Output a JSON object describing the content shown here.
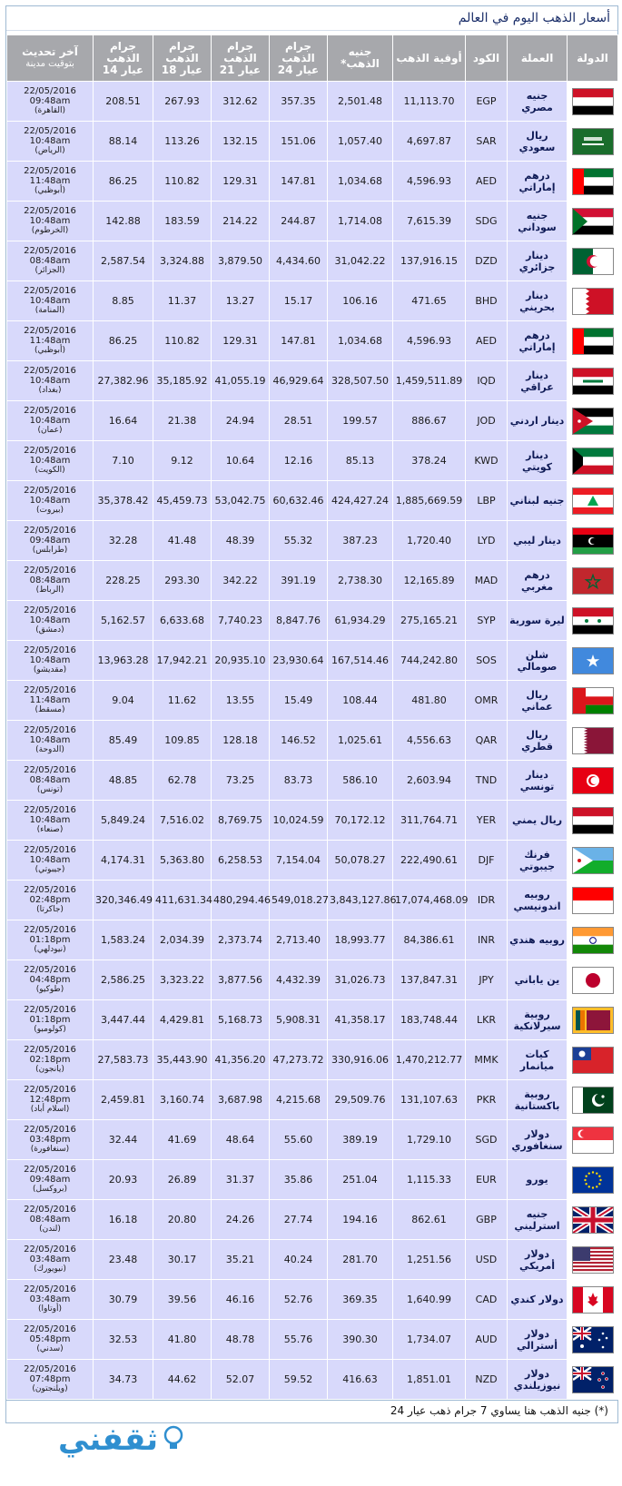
{
  "title": "أسعار الذهب اليوم في العالم",
  "headers": {
    "country": "الدولة",
    "currency": "العملة",
    "code": "الكود",
    "ounce": "أوقية الذهب",
    "pound": "جنيه الذهب*",
    "g24": "جرام الذهب عيار 24",
    "g21": "جرام الذهب عيار 21",
    "g18": "جرام الذهب عيار 18",
    "g14": "جرام الذهب عيار 14",
    "updated": "آخر تحديث",
    "updated_sub": "بتوقيت مدينة"
  },
  "flag_colors": {
    "egypt": [
      "#ce1126",
      "#ffffff",
      "#000000"
    ],
    "saudi": [
      "#1a6d2c"
    ],
    "uae": [
      "#00732f",
      "#ffffff",
      "#000000",
      "#ff0000"
    ]
  },
  "rows": [
    {
      "flag": "egypt-flag",
      "currency": "جنيه مصري",
      "code": "EGP",
      "ounce": "11,113.70",
      "pound": "2,501.48",
      "g24": "357.35",
      "g21": "312.62",
      "g18": "267.93",
      "g14": "208.51",
      "date": "22/05/2016",
      "time": "09:48am",
      "city": "(القاهرة)"
    },
    {
      "flag": "saudi-flag",
      "currency": "ريال سعودي",
      "code": "SAR",
      "ounce": "4,697.87",
      "pound": "1,057.40",
      "g24": "151.06",
      "g21": "132.15",
      "g18": "113.26",
      "g14": "88.14",
      "date": "22/05/2016",
      "time": "10:48am",
      "city": "(الرياض)"
    },
    {
      "flag": "uae-flag",
      "currency": "درهم إماراتي",
      "code": "AED",
      "ounce": "4,596.93",
      "pound": "1,034.68",
      "g24": "147.81",
      "g21": "129.31",
      "g18": "110.82",
      "g14": "86.25",
      "date": "22/05/2016",
      "time": "11:48am",
      "city": "(أبوظبي)"
    },
    {
      "flag": "sudan-flag",
      "currency": "جنيه سوداني",
      "code": "SDG",
      "ounce": "7,615.39",
      "pound": "1,714.08",
      "g24": "244.87",
      "g21": "214.22",
      "g18": "183.59",
      "g14": "142.88",
      "date": "22/05/2016",
      "time": "10:48am",
      "city": "(الخرطوم)"
    },
    {
      "flag": "algeria-flag",
      "currency": "دينار جزائري",
      "code": "DZD",
      "ounce": "137,916.15",
      "pound": "31,042.22",
      "g24": "4,434.60",
      "g21": "3,879.50",
      "g18": "3,324.88",
      "g14": "2,587.54",
      "date": "22/05/2016",
      "time": "08:48am",
      "city": "(الجزائر)"
    },
    {
      "flag": "bahrain-flag",
      "currency": "دينار بحريني",
      "code": "BHD",
      "ounce": "471.65",
      "pound": "106.16",
      "g24": "15.17",
      "g21": "13.27",
      "g18": "11.37",
      "g14": "8.85",
      "date": "22/05/2016",
      "time": "10:48am",
      "city": "(المنامة)"
    },
    {
      "flag": "uae-flag",
      "currency": "درهم إماراتي",
      "code": "AED",
      "ounce": "4,596.93",
      "pound": "1,034.68",
      "g24": "147.81",
      "g21": "129.31",
      "g18": "110.82",
      "g14": "86.25",
      "date": "22/05/2016",
      "time": "11:48am",
      "city": "(أبوظبي)"
    },
    {
      "flag": "iraq-flag",
      "currency": "دينار عراقي",
      "code": "IQD",
      "ounce": "1,459,511.89",
      "pound": "328,507.50",
      "g24": "46,929.64",
      "g21": "41,055.19",
      "g18": "35,185.92",
      "g14": "27,382.96",
      "date": "22/05/2016",
      "time": "10:48am",
      "city": "(بغداد)"
    },
    {
      "flag": "jordan-flag",
      "currency": "دينار اردني",
      "code": "JOD",
      "ounce": "886.67",
      "pound": "199.57",
      "g24": "28.51",
      "g21": "24.94",
      "g18": "21.38",
      "g14": "16.64",
      "date": "22/05/2016",
      "time": "10:48am",
      "city": "(عمان)"
    },
    {
      "flag": "kuwait-flag",
      "currency": "دينار كويتي",
      "code": "KWD",
      "ounce": "378.24",
      "pound": "85.13",
      "g24": "12.16",
      "g21": "10.64",
      "g18": "9.12",
      "g14": "7.10",
      "date": "22/05/2016",
      "time": "10:48am",
      "city": "(الكويت)"
    },
    {
      "flag": "lebanon-flag",
      "currency": "جنيه لبناني",
      "code": "LBP",
      "ounce": "1,885,669.59",
      "pound": "424,427.24",
      "g24": "60,632.46",
      "g21": "53,042.75",
      "g18": "45,459.73",
      "g14": "35,378.42",
      "date": "22/05/2016",
      "time": "10:48am",
      "city": "(بيروت)"
    },
    {
      "flag": "libya-flag",
      "currency": "دينار ليبي",
      "code": "LYD",
      "ounce": "1,720.40",
      "pound": "387.23",
      "g24": "55.32",
      "g21": "48.39",
      "g18": "41.48",
      "g14": "32.28",
      "date": "22/05/2016",
      "time": "09:48am",
      "city": "(طرابلس)"
    },
    {
      "flag": "morocco-flag",
      "currency": "درهم مغربي",
      "code": "MAD",
      "ounce": "12,165.89",
      "pound": "2,738.30",
      "g24": "391.19",
      "g21": "342.22",
      "g18": "293.30",
      "g14": "228.25",
      "date": "22/05/2016",
      "time": "08:48am",
      "city": "(الرباط)"
    },
    {
      "flag": "syria-flag",
      "currency": "ليرة سورية",
      "code": "SYP",
      "ounce": "275,165.21",
      "pound": "61,934.29",
      "g24": "8,847.76",
      "g21": "7,740.23",
      "g18": "6,633.68",
      "g14": "5,162.57",
      "date": "22/05/2016",
      "time": "10:48am",
      "city": "(دمشق)"
    },
    {
      "flag": "somalia-flag",
      "currency": "شلن صومالي",
      "code": "SOS",
      "ounce": "744,242.80",
      "pound": "167,514.46",
      "g24": "23,930.64",
      "g21": "20,935.10",
      "g18": "17,942.21",
      "g14": "13,963.28",
      "date": "22/05/2016",
      "time": "10:48am",
      "city": "(مقديشو)"
    },
    {
      "flag": "oman-flag",
      "currency": "ريال عماني",
      "code": "OMR",
      "ounce": "481.80",
      "pound": "108.44",
      "g24": "15.49",
      "g21": "13.55",
      "g18": "11.62",
      "g14": "9.04",
      "date": "22/05/2016",
      "time": "11:48am",
      "city": "(مسقط)"
    },
    {
      "flag": "qatar-flag",
      "currency": "ريال قطري",
      "code": "QAR",
      "ounce": "4,556.63",
      "pound": "1,025.61",
      "g24": "146.52",
      "g21": "128.18",
      "g18": "109.85",
      "g14": "85.49",
      "date": "22/05/2016",
      "time": "10:48am",
      "city": "(الدوحة)"
    },
    {
      "flag": "tunisia-flag",
      "currency": "دينار تونسي",
      "code": "TND",
      "ounce": "2,603.94",
      "pound": "586.10",
      "g24": "83.73",
      "g21": "73.25",
      "g18": "62.78",
      "g14": "48.85",
      "date": "22/05/2016",
      "time": "08:48am",
      "city": "(تونس)"
    },
    {
      "flag": "yemen-flag",
      "currency": "ريال يمني",
      "code": "YER",
      "ounce": "311,764.71",
      "pound": "70,172.12",
      "g24": "10,024.59",
      "g21": "8,769.75",
      "g18": "7,516.02",
      "g14": "5,849.24",
      "date": "22/05/2016",
      "time": "10:48am",
      "city": "(صنعاء)"
    },
    {
      "flag": "djibouti-flag",
      "currency": "فرنك جيبوتي",
      "code": "DJF",
      "ounce": "222,490.61",
      "pound": "50,078.27",
      "g24": "7,154.04",
      "g21": "6,258.53",
      "g18": "5,363.80",
      "g14": "4,174.31",
      "date": "22/05/2016",
      "time": "10:48am",
      "city": "(جيبوتي)"
    },
    {
      "flag": "indonesia-flag",
      "currency": "روبيه اندونيسي",
      "code": "IDR",
      "ounce": "17,074,468.09",
      "pound": "3,843,127.86",
      "g24": "549,018.27",
      "g21": "480,294.46",
      "g18": "411,631.34",
      "g14": "320,346.49",
      "date": "22/05/2016",
      "time": "02:48pm",
      "city": "(جاكرتا)"
    },
    {
      "flag": "india-flag",
      "currency": "روبيه هندي",
      "code": "INR",
      "ounce": "84,386.61",
      "pound": "18,993.77",
      "g24": "2,713.40",
      "g21": "2,373.74",
      "g18": "2,034.39",
      "g14": "1,583.24",
      "date": "22/05/2016",
      "time": "01:18pm",
      "city": "(نيودلهي)"
    },
    {
      "flag": "japan-flag",
      "currency": "ين ياباني",
      "code": "JPY",
      "ounce": "137,847.31",
      "pound": "31,026.73",
      "g24": "4,432.39",
      "g21": "3,877.56",
      "g18": "3,323.22",
      "g14": "2,586.25",
      "date": "22/05/2016",
      "time": "04:48pm",
      "city": "(طوكيو)"
    },
    {
      "flag": "srilanka-flag",
      "currency": "روبية سيرلانكية",
      "code": "LKR",
      "ounce": "183,748.44",
      "pound": "41,358.17",
      "g24": "5,908.31",
      "g21": "5,168.73",
      "g18": "4,429.81",
      "g14": "3,447.44",
      "date": "22/05/2016",
      "time": "01:18pm",
      "city": "(كولومبو)"
    },
    {
      "flag": "myanmar-flag",
      "currency": "كيات ميانمار",
      "code": "MMK",
      "ounce": "1,470,212.77",
      "pound": "330,916.06",
      "g24": "47,273.72",
      "g21": "41,356.20",
      "g18": "35,443.90",
      "g14": "27,583.73",
      "date": "22/05/2016",
      "time": "02:18pm",
      "city": "(يانجون)"
    },
    {
      "flag": "pakistan-flag",
      "currency": "روبية باكستانية",
      "code": "PKR",
      "ounce": "131,107.63",
      "pound": "29,509.76",
      "g24": "4,215.68",
      "g21": "3,687.98",
      "g18": "3,160.74",
      "g14": "2,459.81",
      "date": "22/05/2016",
      "time": "12:48pm",
      "city": "(اسلام أباد)"
    },
    {
      "flag": "singapore-flag",
      "currency": "دولار سنغافوري",
      "code": "SGD",
      "ounce": "1,729.10",
      "pound": "389.19",
      "g24": "55.60",
      "g21": "48.64",
      "g18": "41.69",
      "g14": "32.44",
      "date": "22/05/2016",
      "time": "03:48pm",
      "city": "(سنغافورة)"
    },
    {
      "flag": "eu-flag",
      "currency": "يورو",
      "code": "EUR",
      "ounce": "1,115.33",
      "pound": "251.04",
      "g24": "35.86",
      "g21": "31.37",
      "g18": "26.89",
      "g14": "20.93",
      "date": "22/05/2016",
      "time": "09:48am",
      "city": "(بروكسل)"
    },
    {
      "flag": "uk-flag",
      "currency": "جنيه استرليني",
      "code": "GBP",
      "ounce": "862.61",
      "pound": "194.16",
      "g24": "27.74",
      "g21": "24.26",
      "g18": "20.80",
      "g14": "16.18",
      "date": "22/05/2016",
      "time": "08:48am",
      "city": "(لندن)"
    },
    {
      "flag": "usa-flag",
      "currency": "دولار أمريكي",
      "code": "USD",
      "ounce": "1,251.56",
      "pound": "281.70",
      "g24": "40.24",
      "g21": "35.21",
      "g18": "30.17",
      "g14": "23.48",
      "date": "22/05/2016",
      "time": "03:48am",
      "city": "(نيويورك)"
    },
    {
      "flag": "canada-flag",
      "currency": "دولار كندي",
      "code": "CAD",
      "ounce": "1,640.99",
      "pound": "369.35",
      "g24": "52.76",
      "g21": "46.16",
      "g18": "39.56",
      "g14": "30.79",
      "date": "22/05/2016",
      "time": "03:48am",
      "city": "(أوتاوا)"
    },
    {
      "flag": "australia-flag",
      "currency": "دولار أسترالي",
      "code": "AUD",
      "ounce": "1,734.07",
      "pound": "390.30",
      "g24": "55.76",
      "g21": "48.78",
      "g18": "41.80",
      "g14": "32.53",
      "date": "22/05/2016",
      "time": "05:48pm",
      "city": "(سدني)"
    },
    {
      "flag": "newzealand-flag",
      "currency": "دولار نيوزيلندي",
      "code": "NZD",
      "ounce": "1,851.01",
      "pound": "416.63",
      "g24": "59.52",
      "g21": "52.07",
      "g18": "44.62",
      "g14": "34.73",
      "date": "22/05/2016",
      "time": "07:48pm",
      "city": "(ويلنجتون)"
    }
  ],
  "footnote": "(*) جنيه الذهب هنا يساوي 7 جرام ذهب عيار 24",
  "logo_text": "ثقفني"
}
